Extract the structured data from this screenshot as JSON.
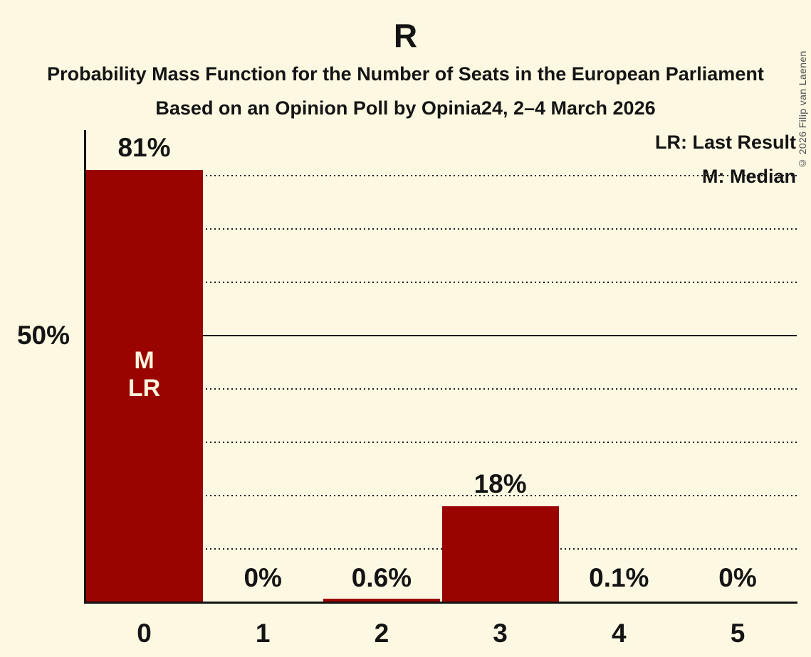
{
  "title": "R",
  "subtitle1": "Probability Mass Function for the Number of Seats in the European Parliament",
  "subtitle2": "Based on an Opinion Poll by Opinia24, 2–4 March 2026",
  "copyright": "© 2026 Filip van Laenen",
  "legend": {
    "lr": "LR: Last Result",
    "m": "M: Median"
  },
  "colors": {
    "background": "#FCF8E2",
    "bar": "#9A0400",
    "text": "#141414",
    "gridline": "#1C1C1C",
    "bar_annotation_text": "#FBF5DE",
    "copyright_text": "#4E4E4E"
  },
  "chart_data": {
    "type": "bar",
    "title": "R",
    "subtitle": "Probability Mass Function for the Number of Seats in the European Parliament",
    "source_line": "Based on an Opinion Poll by Opinia24, 2–4 March 2026",
    "categories": [
      "0",
      "1",
      "2",
      "3",
      "4",
      "5"
    ],
    "values": [
      81,
      0,
      0.6,
      18,
      0.1,
      0
    ],
    "value_labels": [
      "81%",
      "0%",
      "0.6%",
      "18%",
      "0.1%",
      "0%"
    ],
    "ylabel_tick": {
      "value": 50,
      "label": "50%"
    },
    "ylim": [
      0,
      88.5
    ],
    "grid": "dotted horizontal every 10%",
    "gridline_values": [
      10,
      20,
      30,
      40,
      60,
      70,
      80
    ],
    "median_line_value": 50,
    "bar_annotations": [
      {
        "bar_index": 0,
        "lines": [
          "M",
          "LR"
        ]
      }
    ],
    "legend_entries": [
      "LR: Last Result",
      "M: Median"
    ],
    "legend_position": "top-right"
  }
}
